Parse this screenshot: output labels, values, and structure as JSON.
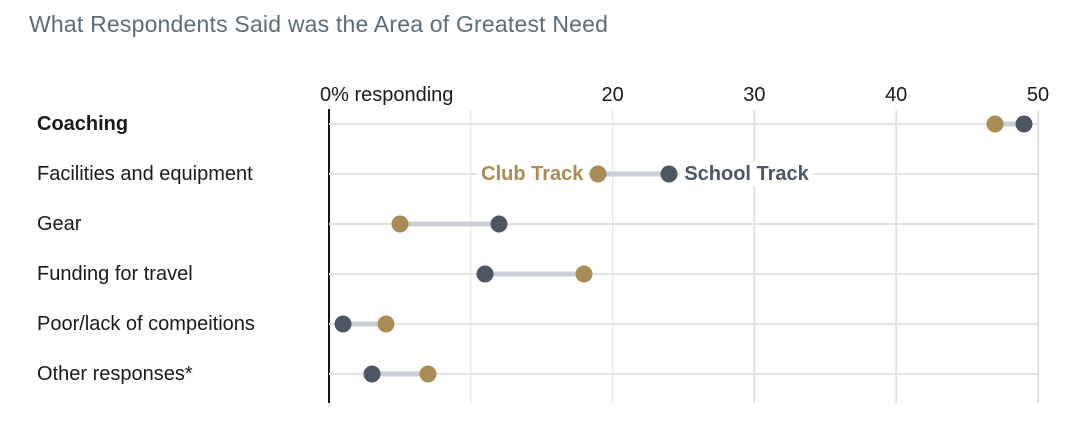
{
  "title": "What Respondents Said was the Area of Greatest Need",
  "colors": {
    "club": "#a98b55",
    "school": "#4d5663",
    "title_text": "#5d6c76",
    "label_text": "#1a1a1a",
    "gridline": "#e1e1e1",
    "row_line": "#e3e3e3",
    "connector": "#c9cfd4",
    "axis_line": "#121212",
    "background": "#ffffff"
  },
  "chart_data": {
    "type": "scatter",
    "subtype": "dumbbell-dot-plot",
    "orientation": "horizontal",
    "title": "What Respondents Said was the Area of Greatest Need",
    "axis_label": "0% responding",
    "xlabel": "% responding",
    "ylabel": "",
    "xlim": [
      0,
      50
    ],
    "x_ticks": [
      10,
      20,
      30,
      40,
      50
    ],
    "x_tick_labels": [
      "",
      "20",
      "30",
      "40",
      "50"
    ],
    "grid": "on",
    "legend_position": "inline-on-second-row",
    "categories": [
      "Coaching",
      "Facilities and equipment",
      "Gear",
      "Funding for travel",
      "Poor/lack of compeitions",
      "Other responses*"
    ],
    "emphasized_category_index": 0,
    "series": [
      {
        "name": "Club Track",
        "color": "#a98b55",
        "values": [
          47,
          19,
          5,
          18,
          4,
          7
        ]
      },
      {
        "name": "School Track",
        "color": "#4d5663",
        "values": [
          49,
          24,
          12,
          11,
          1,
          3
        ]
      }
    ],
    "legend_row_index": 1
  }
}
